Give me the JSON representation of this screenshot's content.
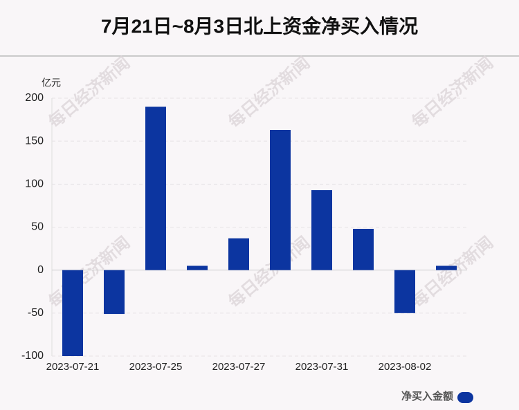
{
  "chart_data": {
    "type": "bar",
    "title": "7月21日~8月3日北上资金净买入情况",
    "y_axis_label": "亿元",
    "watermark": "每日经济新闻",
    "categories": [
      "2023-07-21",
      null,
      "2023-07-25",
      null,
      "2023-07-27",
      null,
      "2023-07-31",
      null,
      "2023-08-02",
      null
    ],
    "series": [
      {
        "name": "净买入金额",
        "color": "#0c35a0",
        "values": [
          -100,
          -51,
          190,
          5,
          37,
          163,
          93,
          48,
          -50,
          5
        ]
      }
    ],
    "ylim": [
      -100,
      200
    ],
    "yticks": [
      -100,
      -50,
      0,
      50,
      100,
      150,
      200
    ],
    "grid": true,
    "legend": "bottom-right"
  }
}
